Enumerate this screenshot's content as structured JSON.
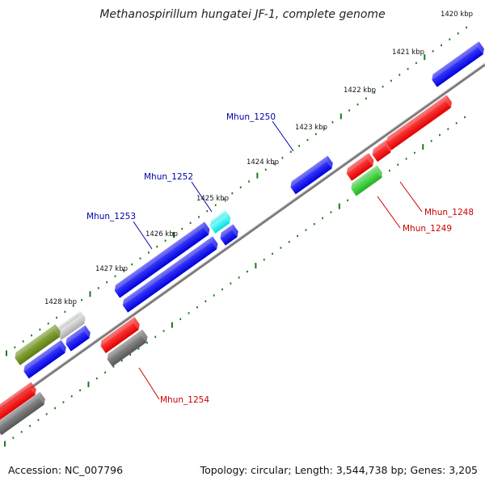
{
  "title": "Methanospirillum hungatei JF-1, complete genome",
  "footer": {
    "accession": "Accession: NC_007796",
    "summary": "Topology: circular; Length: 3,544,738 bp; Genes: 3,205"
  },
  "colors": {
    "backbone": "#808080",
    "tick": "#1a7a1a",
    "forward_label": "#0000aa",
    "reverse_label": "#cc0000"
  },
  "kbp_labels": [
    "1420 kbp",
    "1421 kbp",
    "1422 kbp",
    "1423 kbp",
    "1424 kbp",
    "1425 kbp",
    "1426 kbp",
    "1427 kbp",
    "1428 kbp"
  ],
  "forward_features": [
    {
      "color": "blue"
    },
    {
      "color": "blue",
      "label": "Mhun_1250"
    },
    {
      "color": "cyan",
      "label": "Mhun_1252"
    },
    {
      "color": "blue"
    },
    {
      "color": "blue",
      "label": "Mhun_1253"
    },
    {
      "color": "blue"
    },
    {
      "color": "gray"
    },
    {
      "color": "blue"
    },
    {
      "color": "olive"
    },
    {
      "color": "blue"
    }
  ],
  "reverse_features": [
    {
      "color": "red"
    },
    {
      "color": "red"
    },
    {
      "color": "red",
      "label": "Mhun_1248"
    },
    {
      "color": "green",
      "label": "Mhun_1249"
    },
    {
      "color": "red"
    },
    {
      "color": "darkgray",
      "label": "Mhun_1254"
    },
    {
      "color": "red"
    },
    {
      "color": "darkgray"
    }
  ]
}
